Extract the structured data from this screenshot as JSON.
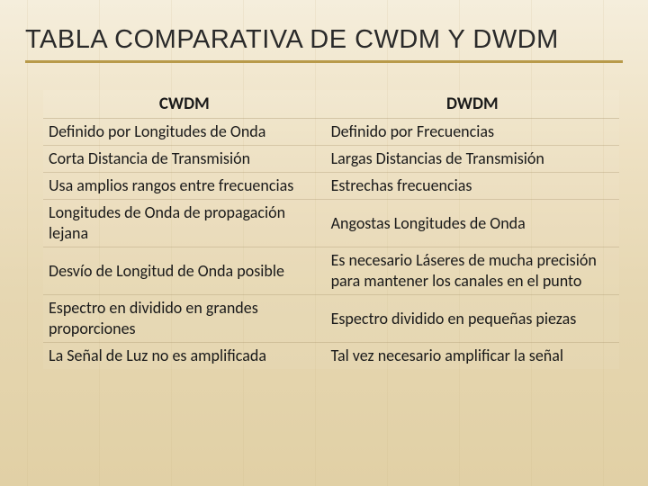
{
  "page": {
    "title": "TABLA COMPARATIVA DE CWDM Y DWDM",
    "title_fontsize": 29,
    "title_underline_color": "#b89a4a",
    "background_gradient": [
      "#f2ead4",
      "#ede1c2",
      "#e8dab5",
      "#e5d4a8"
    ],
    "text_color": "#1a1a1a"
  },
  "table": {
    "type": "table",
    "columns": [
      "CWDM",
      "DWDM"
    ],
    "header_fontsize": 19,
    "cell_fontsize": 18,
    "row_border_color": "rgba(170,150,110,0.35)",
    "column_widths": [
      "49%",
      "51%"
    ],
    "rows": [
      [
        "Definido por Longitudes de Onda",
        "Definido por Frecuencias"
      ],
      [
        "Corta Distancia de Transmisión",
        "Largas Distancias de Transmisión"
      ],
      [
        "Usa amplios rangos entre frecuencias",
        "Estrechas frecuencias"
      ],
      [
        "Longitudes de Onda de propagación lejana",
        "Angostas Longitudes de Onda"
      ],
      [
        "Desvío de Longitud de Onda posible",
        "Es necesario Láseres de mucha precisión para mantener los canales en el punto"
      ],
      [
        "Espectro en dividido en grandes proporciones",
        "Espectro dividido en pequeñas piezas"
      ],
      [
        "La Señal de Luz no es amplificada",
        "Tal vez necesario amplificar la señal"
      ]
    ]
  }
}
